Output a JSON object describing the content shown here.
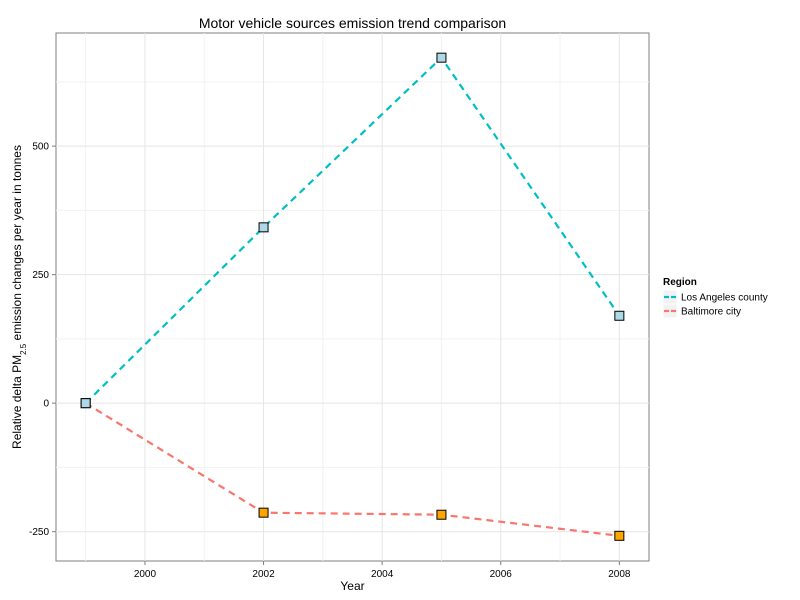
{
  "chart_data": {
    "type": "line",
    "title": "Motor vehicle sources emission trend comparison",
    "xlabel": "Year",
    "ylabel": {
      "prefix": "Relative delta PM",
      "subscript": "2.5",
      "suffix": " emission changes per year in tonnes"
    },
    "xlim": [
      1998.5,
      2008.5
    ],
    "ylim": [
      -307,
      720
    ],
    "x_ticks": [
      2000,
      2002,
      2004,
      2006,
      2008
    ],
    "x_tick_labels": [
      "2000",
      "2002",
      "2004",
      "2006",
      "2008"
    ],
    "y_ticks": [
      -250,
      0,
      250,
      500
    ],
    "y_tick_labels": [
      "-250",
      "0",
      "250",
      "500"
    ],
    "grid": true,
    "legend": {
      "title": "Region",
      "position": "right"
    },
    "series": [
      {
        "name": "Los Angeles county",
        "x": [
          1999,
          2002,
          2005,
          2008
        ],
        "y": [
          0,
          342,
          672,
          170
        ],
        "line_color": "#00BFC4",
        "marker_fill": "#ADD8E6"
      },
      {
        "name": "Baltimore city",
        "x": [
          1999,
          2002,
          2005,
          2008
        ],
        "y": [
          0,
          -213,
          -217,
          -258
        ],
        "line_color": "#F8766D",
        "marker_fill": "#FFA500"
      }
    ]
  }
}
